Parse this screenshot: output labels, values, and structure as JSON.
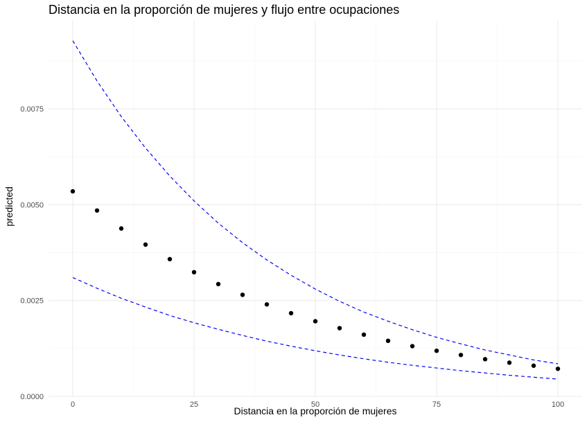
{
  "chart_data": {
    "type": "scatter",
    "title": "Distancia en la proporción de mujeres y flujo entre ocupaciones",
    "xlabel": "Distancia en la proporción de mujeres",
    "ylabel": "predicted",
    "xlim": [
      -5,
      105
    ],
    "ylim": [
      0,
      0.0098
    ],
    "x_ticks": [
      0,
      25,
      50,
      75,
      100
    ],
    "x_tick_labels": [
      "0",
      "25",
      "50",
      "75",
      "100"
    ],
    "y_ticks": [
      0,
      0.0025,
      0.005,
      0.0075
    ],
    "y_tick_labels": [
      "0.0000",
      "0.0025",
      "0.0050",
      "0.0075"
    ],
    "grid": true,
    "series": [
      {
        "kind": "points",
        "color": "#000000",
        "x": [
          0,
          5,
          10,
          15,
          20,
          25,
          30,
          35,
          40,
          45,
          50,
          55,
          60,
          65,
          70,
          75,
          80,
          85,
          90,
          95,
          100
        ],
        "y": [
          0.00535,
          0.00485,
          0.00438,
          0.00396,
          0.00358,
          0.00324,
          0.00293,
          0.00265,
          0.0024,
          0.00217,
          0.00196,
          0.00178,
          0.00161,
          0.00145,
          0.00131,
          0.00119,
          0.00108,
          0.00097,
          0.00088,
          0.0008,
          0.00072
        ]
      },
      {
        "kind": "dashed-line",
        "color": "#0000ff",
        "x": [
          0,
          5,
          10,
          15,
          20,
          25,
          30,
          35,
          40,
          45,
          50,
          55,
          60,
          65,
          70,
          75,
          80,
          85,
          90,
          95,
          100
        ],
        "y": [
          0.00928,
          0.00823,
          0.0073,
          0.00648,
          0.00575,
          0.0051,
          0.00452,
          0.00401,
          0.00356,
          0.00316,
          0.0028,
          0.00248,
          0.0022,
          0.00196,
          0.00174,
          0.00154,
          0.00137,
          0.00121,
          0.00108,
          0.00095,
          0.00085
        ]
      },
      {
        "kind": "dashed-line",
        "color": "#0000ff",
        "x": [
          0,
          5,
          10,
          15,
          20,
          25,
          30,
          35,
          40,
          45,
          50,
          55,
          60,
          65,
          70,
          75,
          80,
          85,
          90,
          95,
          100
        ],
        "y": [
          0.0031,
          0.00282,
          0.00256,
          0.00233,
          0.00211,
          0.00192,
          0.00175,
          0.00159,
          0.00144,
          0.00131,
          0.00119,
          0.00108,
          0.00098,
          0.00089,
          0.00081,
          0.00074,
          0.00067,
          0.00061,
          0.00055,
          0.0005,
          0.00045
        ]
      }
    ]
  }
}
